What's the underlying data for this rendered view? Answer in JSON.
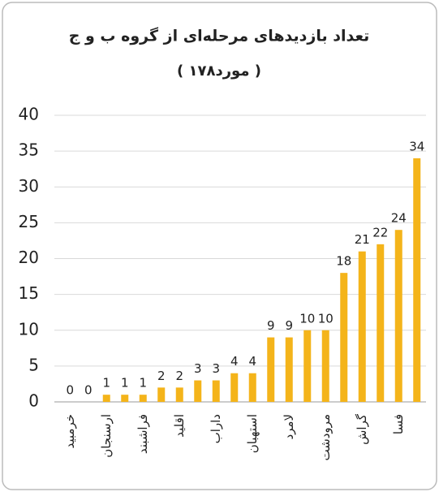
{
  "chart_data": {
    "type": "bar",
    "title": "تعداد بازدیدهای مرحله‌ای از گروه ب و ج",
    "subtitle": "( ۱۷۸مورد )",
    "categories": [
      "خرمبید",
      null,
      "ارسنجان",
      null,
      "فراشبند",
      null,
      "اقلید",
      null,
      "داراب",
      null,
      "استهبان",
      null,
      "لامرد",
      null,
      "مرودشت",
      null,
      "گراش",
      null,
      "فسا",
      null
    ],
    "values": [
      0,
      0,
      1,
      1,
      1,
      2,
      2,
      3,
      3,
      4,
      4,
      9,
      9,
      10,
      10,
      18,
      21,
      22,
      24,
      34
    ],
    "color": "#f4b41a",
    "ylim": [
      0,
      40
    ],
    "yticks": [
      0,
      5,
      10,
      15,
      20,
      25,
      30,
      35,
      40
    ],
    "grid": true
  }
}
